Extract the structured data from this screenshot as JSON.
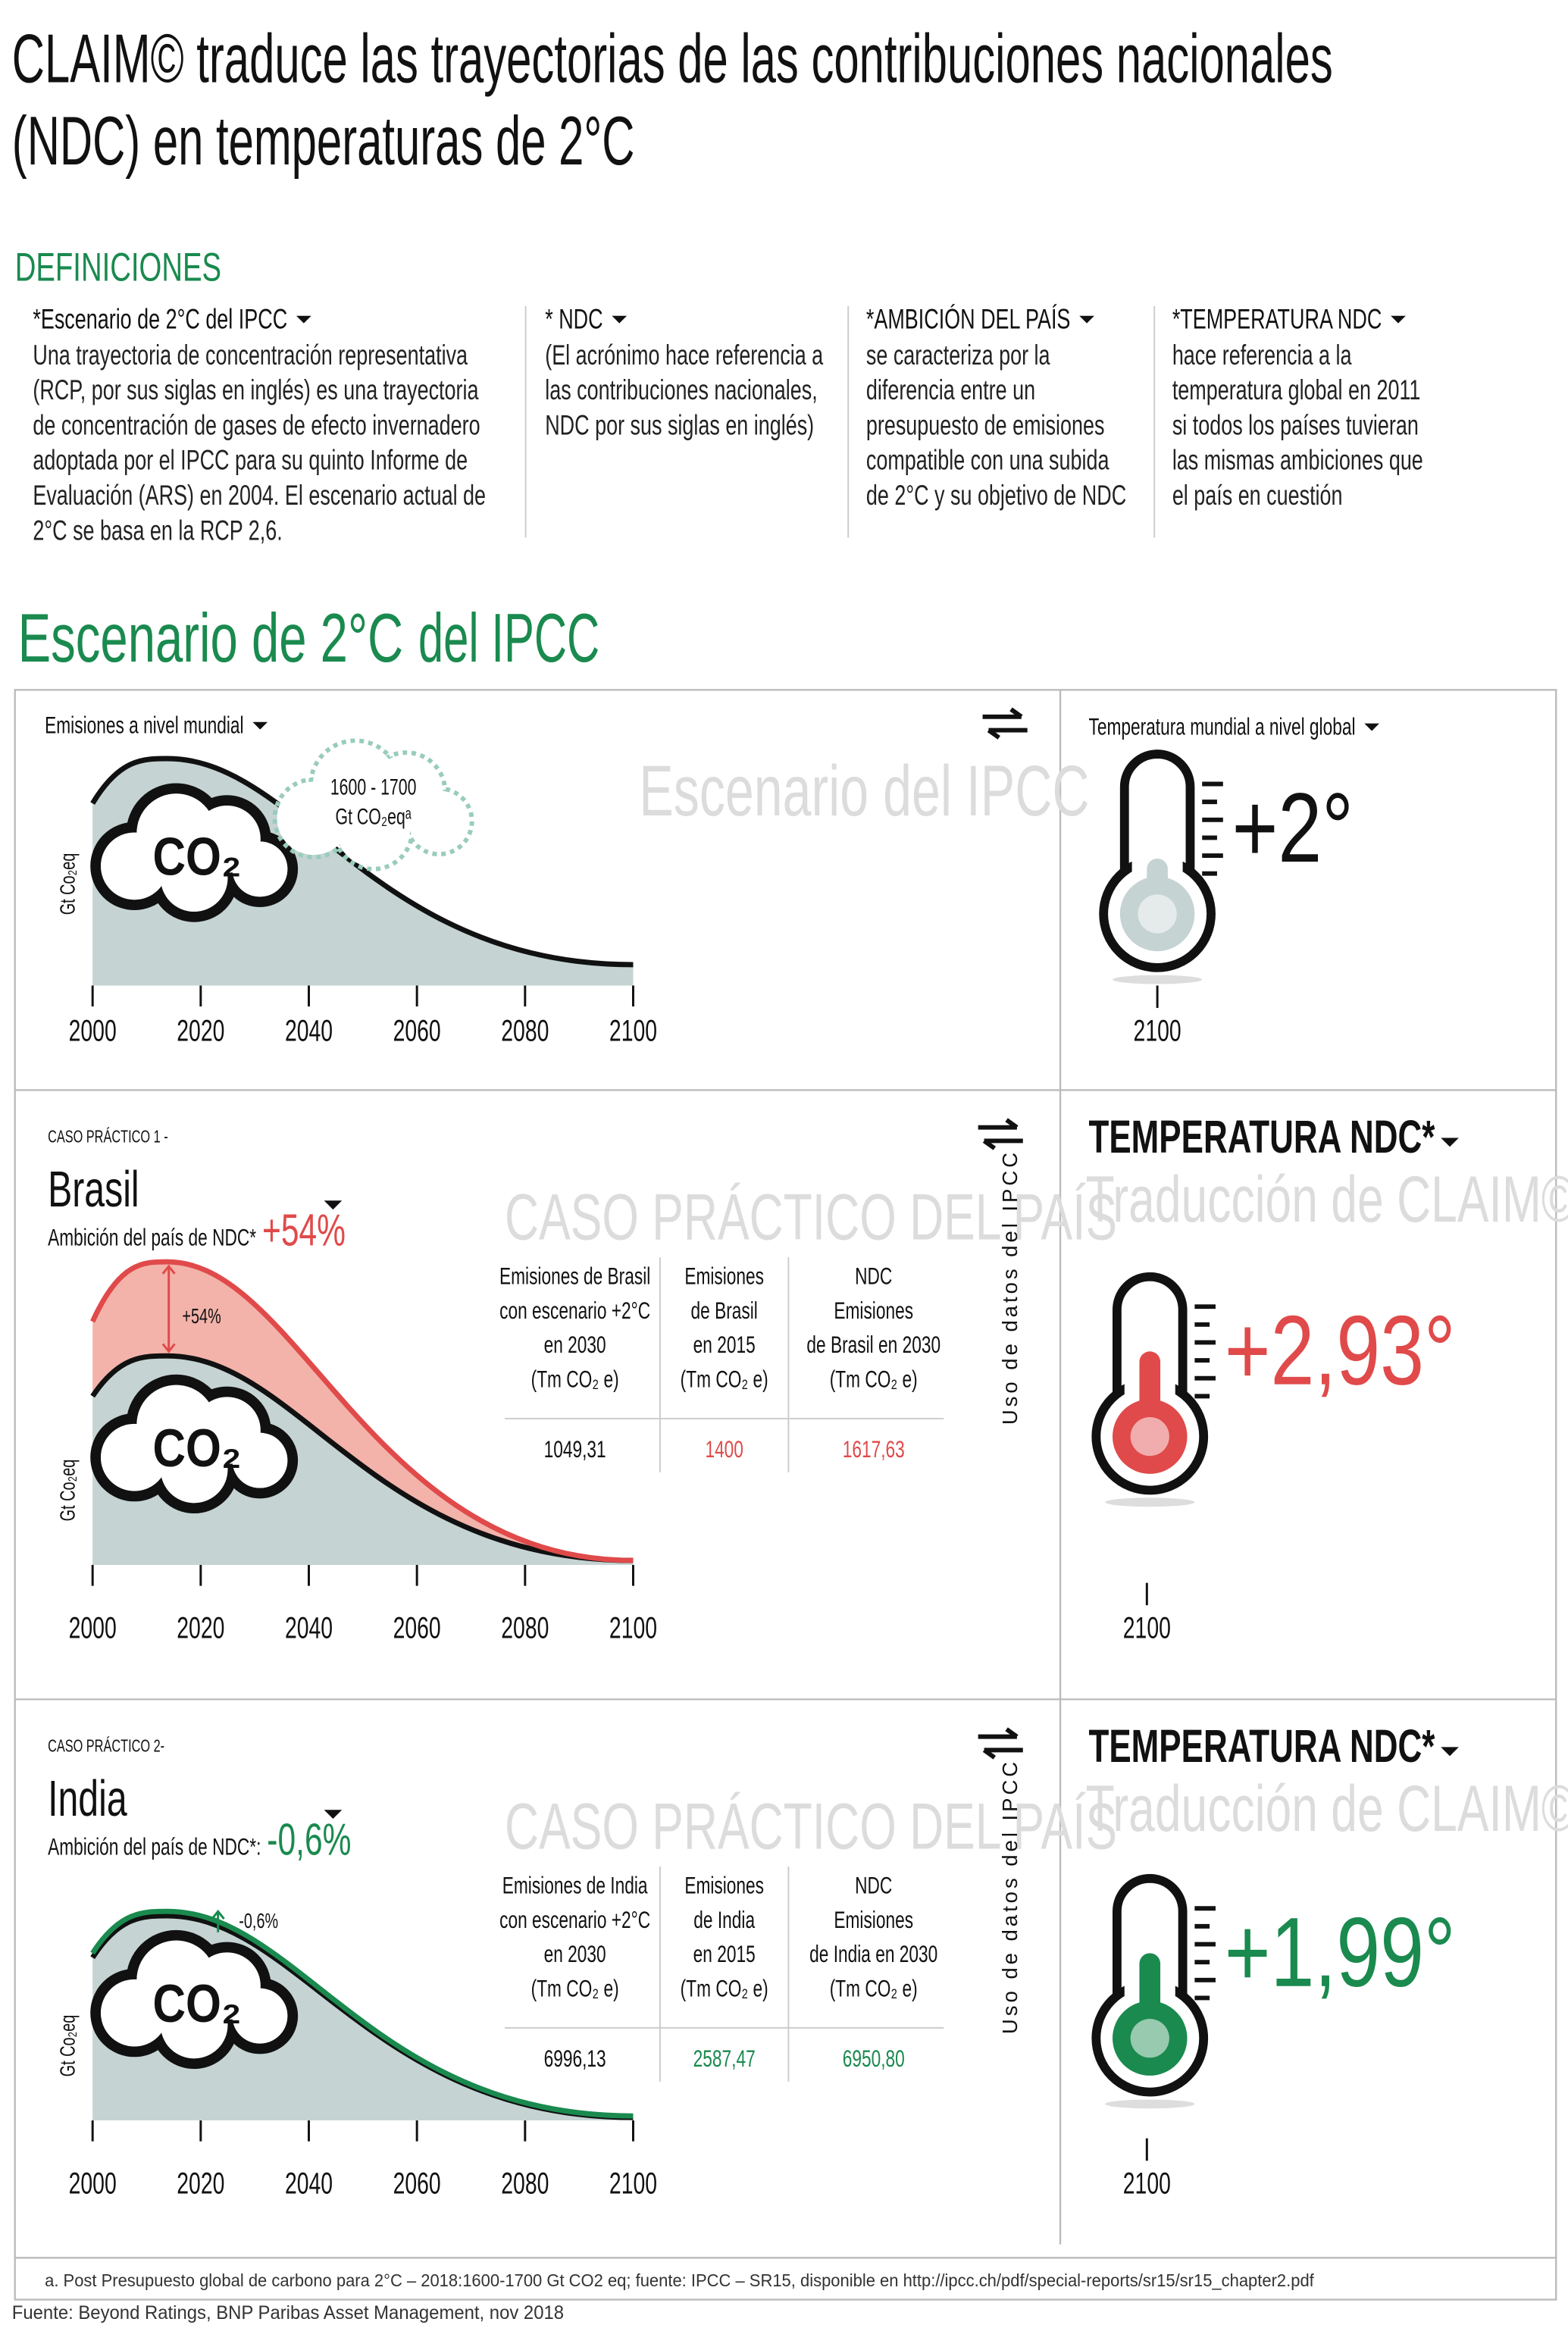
{
  "header": {
    "title_lines": [
      "CLAIM© traduce las trayectorias de las contribuciones nacionales",
      "(NDC) en temperaturas de 2°C"
    ]
  },
  "definitions": {
    "heading": "DEFINICIONES",
    "items": [
      {
        "title": "*Escenario de 2°C del IPCC",
        "lines": [
          "Una trayectoria de concentración representativa",
          "(RCP, por sus siglas en inglés) es una trayectoria",
          "de concentración de gases de efecto invernadero",
          "adoptada por el IPCC para su quinto Informe de",
          "Evaluación (ARS) en 2004. El escenario actual de",
          "2°C se basa en la RCP 2,6."
        ]
      },
      {
        "title": "* NDC",
        "lines": [
          "(El acrónimo hace referencia a",
          "las contribuciones nacionales,",
          "NDC por sus siglas en inglés)"
        ]
      },
      {
        "title": "*AMBICIÓN DEL PAÍS",
        "lines": [
          "se caracteriza por la",
          "diferencia entre un",
          "presupuesto de emisiones",
          "compatible con una subida",
          "de 2°C y su objetivo de NDC"
        ]
      },
      {
        "title": "*TEMPERATURA NDC",
        "lines": [
          "hace referencia a la",
          "temperatura global en 2011",
          "si todos los países tuvieran",
          "las mismas ambiciones que",
          "el país en cuestión"
        ]
      }
    ]
  },
  "section_title": {
    "bold": "Escenario de 2°C",
    "light": "del IPCC"
  },
  "ipcc_panel": {
    "label": "Emisiones a nivel mundial",
    "cloud_lines": [
      "1600 - 1700",
      "Gt CO₂eqᵃ"
    ],
    "co2": "CO₂",
    "y_label": "Gt Co₂eq",
    "x_labels": [
      "2000",
      "2020",
      "2040",
      "2060",
      "2080",
      "2100"
    ],
    "watermark": "Escenario del IPCC",
    "temp_label": "Temperatura mundial a nivel global",
    "temp_value": "+2°",
    "temp_year": "2100"
  },
  "cases": [
    {
      "case_label": "CASO PRÁCTICO 1 -",
      "country": "Brasil",
      "ambition_label": "Ambición del país de NDC*",
      "ambition_value": "+54%",
      "curve_label": "+54%",
      "watermark": "CASO PRÁCTICO DEL PAÍS",
      "co2": "CO₂",
      "y_label": "Gt Co₂eq",
      "x_labels": [
        "2000",
        "2020",
        "2040",
        "2060",
        "2080",
        "2100"
      ],
      "table": {
        "headers": [
          [
            "Emisiones de Brasil",
            "con escenario +2°C",
            "en 2030",
            "(Tm CO₂ e)"
          ],
          [
            "Emisiones",
            "de Brasil",
            "en 2015",
            "(Tm CO₂ e)"
          ],
          [
            "NDC",
            "Emisiones",
            "de Brasil en 2030",
            "(Tm CO₂ e)"
          ]
        ],
        "values": [
          "1049,31",
          "1400",
          "1617,63"
        ]
      },
      "side_label": "Uso de datos del IPCC",
      "ndc_title": "TEMPERATURA NDC*",
      "ndc_subtitle": "Traducción de CLAIM©",
      "temp_value": "+2,93°",
      "temp_year": "2100"
    },
    {
      "case_label": "CASO PRÁCTICO 2-",
      "country": "India",
      "ambition_label": "Ambición del país de NDC*:",
      "ambition_value": "-0,6%",
      "curve_label": "-0,6%",
      "watermark": "CASO PRÁCTICO DEL PAÍS",
      "co2": "CO₂",
      "y_label": "Gt Co₂eq",
      "x_labels": [
        "2000",
        "2020",
        "2040",
        "2060",
        "2080",
        "2100"
      ],
      "table": {
        "headers": [
          [
            "Emisiones de India",
            "con escenario +2°C",
            "en 2030",
            "(Tm CO₂ e)"
          ],
          [
            "Emisiones",
            "de India",
            "en 2015",
            "(Tm CO₂ e)"
          ],
          [
            "NDC",
            "Emisiones",
            "de India en 2030",
            "(Tm CO₂ e)"
          ]
        ],
        "values": [
          "6996,13",
          "2587,47",
          "6950,80"
        ]
      },
      "side_label": "Uso de datos del IPCC",
      "ndc_title": "TEMPERATURA NDC*",
      "ndc_subtitle": "Traducción de CLAIM©",
      "temp_value": "+1,99°",
      "temp_year": "2100"
    }
  ],
  "footnote": "a. Post Presupuesto global de carbono para 2°C – 2018:1600-1700 Gt CO2 eq; fuente: IPCC – SR15, disponible en http://ipcc.ch/pdf/special-reports/sr15/sr15_chapter2.pdf",
  "source": "Fuente: Beyond Ratings, BNP Paribas Asset Management, nov 2018"
}
